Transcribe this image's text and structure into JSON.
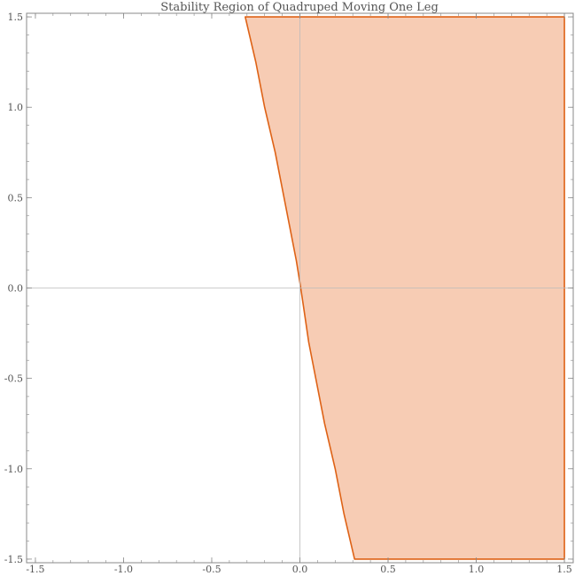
{
  "chart_data": {
    "type": "area",
    "title": "Stability Region of Quadruped Moving One Leg",
    "xlabel": "",
    "ylabel": "",
    "xlim": [
      -1.55,
      1.55
    ],
    "ylim": [
      -1.52,
      1.52
    ],
    "x_ticks": [
      -1.5,
      -1.0,
      -0.5,
      0.0,
      0.5,
      1.0,
      1.5
    ],
    "x_tick_labels": [
      "-1.5",
      "-1.0",
      "-0.5",
      "0.0",
      "0.5",
      "1.0",
      "1.5"
    ],
    "y_ticks": [
      -1.5,
      -1.0,
      -0.5,
      0.0,
      0.5,
      1.0,
      1.5
    ],
    "y_tick_labels": [
      "-1.5",
      "-1.0",
      "-0.5",
      "0.0",
      "0.5",
      "1.0",
      "1.5"
    ],
    "region_boundary": {
      "x": [
        -0.31,
        -0.25,
        -0.2,
        -0.14,
        -0.09,
        -0.05,
        -0.02,
        0.0,
        0.02,
        0.05,
        0.09,
        0.14,
        0.2,
        0.25,
        0.31,
        1.5,
        1.5,
        -0.31
      ],
      "y": [
        1.5,
        1.25,
        1.0,
        0.75,
        0.5,
        0.3,
        0.15,
        0.03,
        -0.1,
        -0.3,
        -0.5,
        -0.75,
        -1.0,
        -1.25,
        -1.5,
        -1.5,
        1.5,
        1.5
      ]
    },
    "axes_origin": [
      0,
      0
    ],
    "grid": false,
    "colors": {
      "fill": "#f7ccb4",
      "boundary": "#de6216",
      "axes": "#bbbbbb",
      "frame": "#888888"
    }
  }
}
